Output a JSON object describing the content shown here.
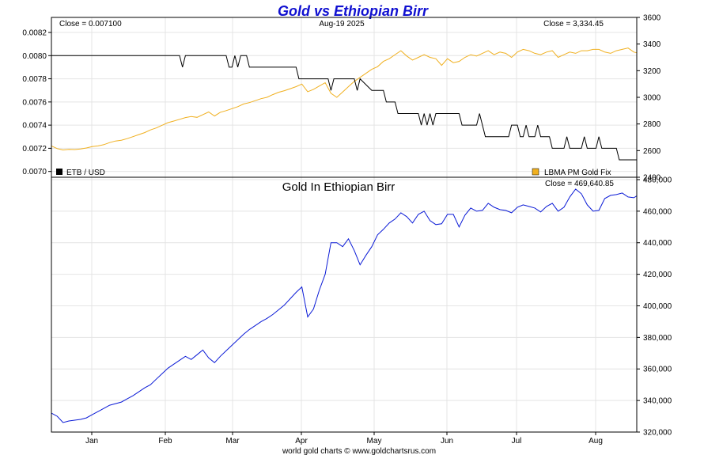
{
  "chart_data": [
    {
      "type": "line",
      "title": "Gold vs Ethiopian Birr",
      "date_label": "Aug-19  2025",
      "left_close": "Close = 0.007100",
      "right_close": "Close = 3,334.45",
      "x_ticks": [
        "Jan",
        "Feb",
        "Mar",
        "Apr",
        "May",
        "Jun",
        "Jul",
        "Aug"
      ],
      "left_axis": {
        "ylim": [
          0.00695,
          0.00833
        ],
        "ticks": [
          0.007,
          0.0072,
          0.0074,
          0.0076,
          0.0078,
          0.008,
          0.0082
        ],
        "tick_labels": [
          "0.0070",
          "0.0072",
          "0.0074",
          "0.0076",
          "0.0078",
          "0.0080",
          "0.0082"
        ]
      },
      "right_axis": {
        "ylim": [
          2400,
          3600
        ],
        "ticks": [
          2400,
          2600,
          2800,
          3000,
          3200,
          3400,
          3600
        ],
        "tick_labels": [
          "2400",
          "2600",
          "2800",
          "3000",
          "3200",
          "3400",
          "3600"
        ]
      },
      "grid": true,
      "series": [
        {
          "name": "ETB / USD",
          "axis": "left",
          "color": "#000000",
          "x": [
            0,
            44,
            45,
            46,
            60,
            61,
            62,
            63,
            64,
            65,
            66,
            67,
            68,
            69,
            84,
            85,
            95,
            96,
            97,
            98,
            104,
            105,
            106,
            110,
            111,
            112,
            114,
            115,
            116,
            117,
            118,
            119,
            120,
            125,
            126,
            127,
            128,
            129,
            130,
            131,
            132,
            134,
            135,
            136,
            137,
            138,
            140,
            141,
            142,
            143,
            145,
            146,
            147,
            148,
            149,
            150,
            151,
            152,
            153,
            154,
            155,
            156,
            157,
            158,
            160,
            161,
            162,
            163,
            164,
            165,
            166,
            167,
            168,
            169,
            170,
            171,
            172,
            173,
            174,
            175,
            176,
            177,
            178,
            179,
            180,
            181,
            182,
            183,
            184,
            185,
            187,
            188,
            189,
            190,
            191,
            192,
            193,
            194,
            195,
            196,
            197,
            198,
            199,
            200,
            201
          ],
          "y": [
            0.008,
            0.008,
            0.0079,
            0.008,
            0.008,
            0.0079,
            0.0079,
            0.008,
            0.0079,
            0.008,
            0.008,
            0.008,
            0.0079,
            0.0079,
            0.0079,
            0.0078,
            0.0078,
            0.0077,
            0.0078,
            0.0078,
            0.0078,
            0.0077,
            0.0078,
            0.0077,
            0.0077,
            0.0077,
            0.0077,
            0.0076,
            0.0076,
            0.0076,
            0.0076,
            0.0075,
            0.0075,
            0.0075,
            0.0075,
            0.0074,
            0.0075,
            0.0074,
            0.0075,
            0.0074,
            0.0075,
            0.0075,
            0.0075,
            0.0075,
            0.0075,
            0.0075,
            0.0075,
            0.0074,
            0.0074,
            0.0074,
            0.0074,
            0.0074,
            0.0075,
            0.0074,
            0.0073,
            0.0073,
            0.0073,
            0.0073,
            0.0073,
            0.0073,
            0.0073,
            0.0073,
            0.0073,
            0.0074,
            0.0074,
            0.0073,
            0.0073,
            0.0074,
            0.0073,
            0.0073,
            0.0073,
            0.0074,
            0.0073,
            0.0073,
            0.0073,
            0.0073,
            0.0072,
            0.0072,
            0.0072,
            0.0072,
            0.0072,
            0.0073,
            0.0072,
            0.0072,
            0.0072,
            0.0072,
            0.0072,
            0.0073,
            0.0072,
            0.0072,
            0.0072,
            0.0073,
            0.0072,
            0.0072,
            0.0072,
            0.0072,
            0.0072,
            0.0072,
            0.0071,
            0.0071,
            0.0071,
            0.0071,
            0.0071,
            0.0071,
            0.0071
          ]
        },
        {
          "name": "LBMA PM Gold Fix",
          "axis": "right",
          "color": "#f0b020",
          "x": [
            0,
            2,
            4,
            6,
            8,
            10,
            12,
            14,
            16,
            18,
            20,
            22,
            24,
            26,
            28,
            30,
            32,
            34,
            36,
            38,
            40,
            42,
            44,
            46,
            48,
            50,
            52,
            54,
            56,
            58,
            60,
            62,
            64,
            66,
            68,
            70,
            72,
            74,
            76,
            78,
            80,
            82,
            84,
            86,
            88,
            90,
            92,
            94,
            96,
            98,
            100,
            102,
            104,
            106,
            108,
            110,
            112,
            114,
            116,
            118,
            120,
            122,
            124,
            126,
            128,
            130,
            132,
            134,
            136,
            138,
            140,
            142,
            144,
            146,
            148,
            150,
            152,
            154,
            156,
            158,
            160,
            162,
            164,
            166,
            168,
            170,
            172,
            174,
            176,
            178,
            180,
            182,
            184,
            186,
            188,
            190,
            192,
            194,
            196,
            198,
            200,
            201
          ],
          "y": [
            2635,
            2615,
            2605,
            2610,
            2608,
            2612,
            2620,
            2630,
            2635,
            2645,
            2660,
            2672,
            2678,
            2690,
            2705,
            2720,
            2735,
            2755,
            2770,
            2790,
            2810,
            2822,
            2835,
            2848,
            2856,
            2850,
            2870,
            2890,
            2860,
            2888,
            2900,
            2915,
            2930,
            2950,
            2960,
            2975,
            2990,
            3000,
            3020,
            3038,
            3050,
            3065,
            3080,
            3100,
            3042,
            3060,
            3085,
            3110,
            3030,
            3000,
            3040,
            3080,
            3120,
            3150,
            3180,
            3210,
            3230,
            3270,
            3290,
            3320,
            3350,
            3310,
            3280,
            3300,
            3320,
            3300,
            3290,
            3240,
            3290,
            3260,
            3270,
            3300,
            3320,
            3310,
            3330,
            3350,
            3320,
            3340,
            3330,
            3300,
            3340,
            3360,
            3350,
            3330,
            3320,
            3340,
            3350,
            3300,
            3320,
            3340,
            3330,
            3350,
            3350,
            3360,
            3360,
            3340,
            3330,
            3350,
            3360,
            3370,
            3340,
            3334.45
          ]
        }
      ]
    },
    {
      "type": "line",
      "title": "Gold In Ethiopian Birr",
      "close_label": "Close = 469,640.85",
      "x_ticks": [
        "Jan",
        "Feb",
        "Mar",
        "Apr",
        "May",
        "Jun",
        "Jul",
        "Aug"
      ],
      "right_axis": {
        "ylim": [
          320000,
          481500
        ],
        "ticks": [
          320000,
          340000,
          360000,
          380000,
          400000,
          420000,
          440000,
          460000,
          480000
        ],
        "tick_labels": [
          "320,000",
          "340,000",
          "360,000",
          "380,000",
          "400,000",
          "420,000",
          "440,000",
          "460,000",
          "480,000"
        ]
      },
      "grid": true,
      "series": [
        {
          "name": "Gold In Ethiopian Birr",
          "axis": "right",
          "color": "#0a1ad6",
          "x": [
            0,
            2,
            4,
            6,
            8,
            10,
            12,
            14,
            16,
            18,
            20,
            22,
            24,
            26,
            28,
            30,
            32,
            34,
            36,
            38,
            40,
            42,
            44,
            46,
            48,
            50,
            52,
            54,
            56,
            58,
            60,
            62,
            64,
            66,
            68,
            70,
            72,
            74,
            76,
            78,
            80,
            82,
            84,
            86,
            88,
            90,
            92,
            94,
            96,
            98,
            100,
            102,
            104,
            106,
            108,
            110,
            112,
            114,
            116,
            118,
            120,
            122,
            124,
            126,
            128,
            130,
            132,
            134,
            136,
            138,
            140,
            142,
            144,
            146,
            148,
            150,
            152,
            154,
            156,
            158,
            160,
            162,
            164,
            166,
            168,
            170,
            172,
            174,
            176,
            178,
            180,
            182,
            184,
            186,
            188,
            190,
            192,
            194,
            196,
            198,
            200,
            201
          ],
          "y": [
            332000,
            330000,
            326000,
            327000,
            327500,
            328000,
            329000,
            331000,
            333000,
            335000,
            337000,
            338000,
            339000,
            341000,
            343000,
            345500,
            348000,
            350000,
            353500,
            357000,
            360500,
            363000,
            365500,
            368000,
            366000,
            369000,
            372000,
            367000,
            364000,
            368000,
            371500,
            375000,
            378500,
            382000,
            385000,
            387500,
            390000,
            392000,
            394500,
            397500,
            400500,
            404500,
            408500,
            412000,
            393000,
            398000,
            410000,
            420000,
            440000,
            440000,
            437500,
            442500,
            435000,
            426000,
            432000,
            437500,
            445000,
            448500,
            452500,
            455000,
            459000,
            456500,
            452500,
            458000,
            460000,
            454000,
            451500,
            452000,
            458000,
            458000,
            450000,
            457500,
            462000,
            460000,
            460500,
            465000,
            462500,
            461000,
            460500,
            459000,
            462500,
            464000,
            463000,
            462000,
            459500,
            463000,
            465000,
            460000,
            462500,
            469000,
            474000,
            471000,
            464000,
            460000,
            460500,
            468000,
            470000,
            470500,
            471500,
            469000,
            468500,
            469640.85
          ]
        }
      ]
    }
  ],
  "footer": "world gold charts © www.goldchartsrus.com"
}
